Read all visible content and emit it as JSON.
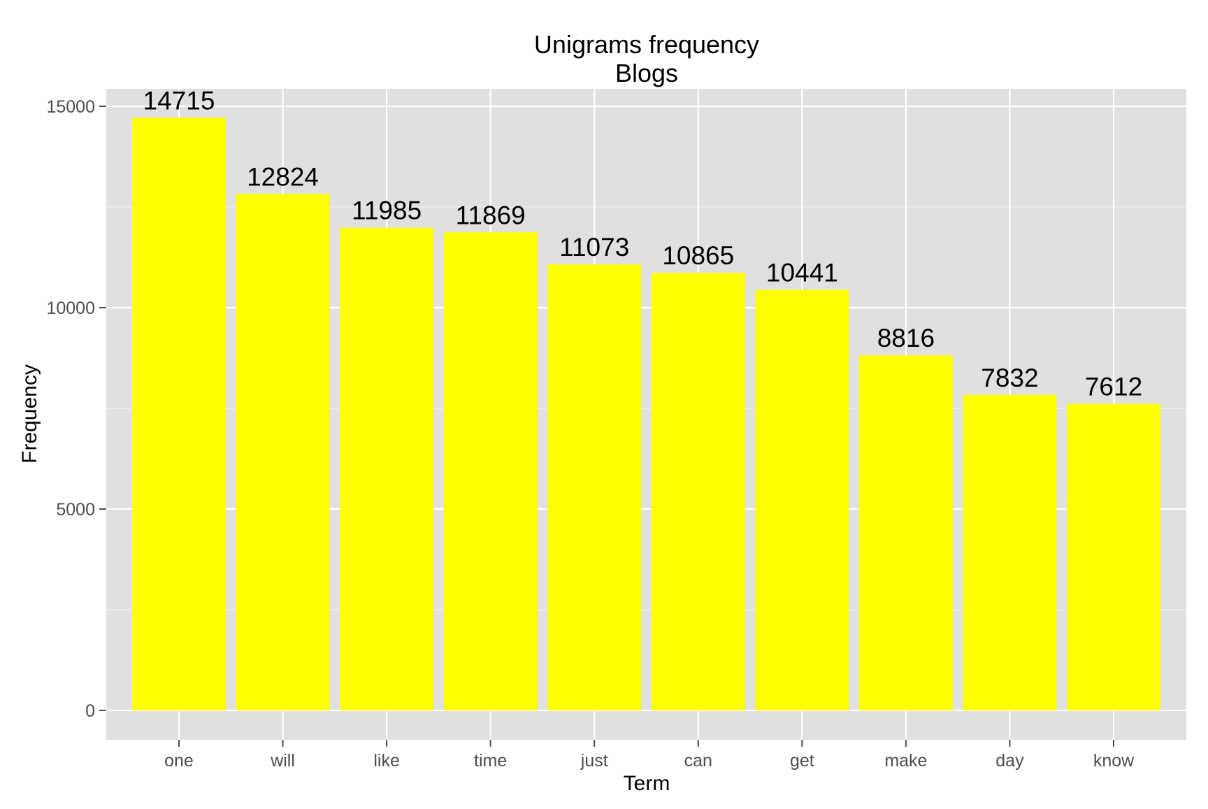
{
  "chart_data": {
    "type": "bar",
    "title": "Unigrams frequency",
    "subtitle": "Blogs",
    "xlabel": "Term",
    "ylabel": "Frequency",
    "categories": [
      "one",
      "will",
      "like",
      "time",
      "just",
      "can",
      "get",
      "make",
      "day",
      "know"
    ],
    "values": [
      14715,
      12824,
      11985,
      11869,
      11073,
      10865,
      10441,
      8816,
      7832,
      7612
    ],
    "ylim": [
      -750,
      15500
    ],
    "yticks": [
      0,
      5000,
      10000,
      15000
    ],
    "ytick_labels": [
      "0",
      "5000",
      "10000",
      "15000"
    ],
    "yminor": [
      2500,
      7500,
      12500
    ],
    "grid": true,
    "legend": "none",
    "colors": {
      "bar": "#ffff00",
      "panel": "#e0e0e0",
      "grid_major": "#ffffff",
      "grid_minor": "#f0f0f0",
      "tick_label": "#4d4d4d"
    }
  }
}
